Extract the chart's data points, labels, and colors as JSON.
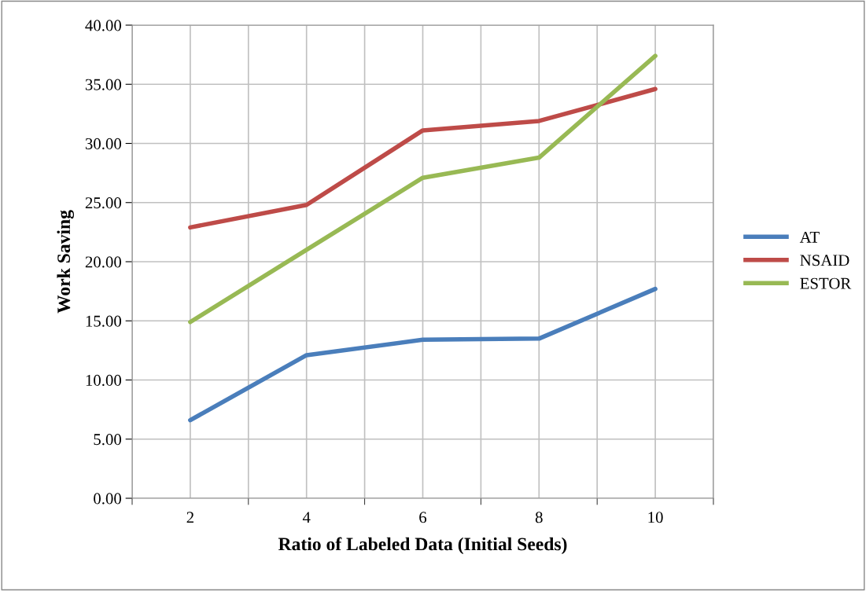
{
  "chart_data": {
    "type": "line",
    "xlabel": "Ratio of Labeled Data (Initial Seeds)",
    "ylabel": "Work Saving",
    "categories": [
      "2",
      "4",
      "6",
      "8",
      "10"
    ],
    "series": [
      {
        "name": "AT",
        "color": "#4a7ebb",
        "values": [
          6.6,
          12.1,
          13.4,
          13.5,
          17.7
        ]
      },
      {
        "name": "NSAID",
        "color": "#be4b48",
        "values": [
          22.9,
          24.8,
          31.1,
          31.9,
          34.6
        ]
      },
      {
        "name": "ESTOR",
        "color": "#98b954",
        "values": [
          14.9,
          21.0,
          27.1,
          28.8,
          37.4
        ]
      }
    ],
    "ylim": [
      0,
      40
    ],
    "yticks": [
      {
        "value": 0,
        "label": "0.00"
      },
      {
        "value": 5,
        "label": "5.00"
      },
      {
        "value": 10,
        "label": "10.00"
      },
      {
        "value": 15,
        "label": "15.00"
      },
      {
        "value": 20,
        "label": "20.00"
      },
      {
        "value": 25,
        "label": "25.00"
      },
      {
        "value": 30,
        "label": "30.00"
      },
      {
        "value": 35,
        "label": "35.00"
      },
      {
        "value": 40,
        "label": "40.00"
      }
    ],
    "grid": true,
    "legend": "right",
    "marker": "none",
    "line_style": "solid"
  }
}
